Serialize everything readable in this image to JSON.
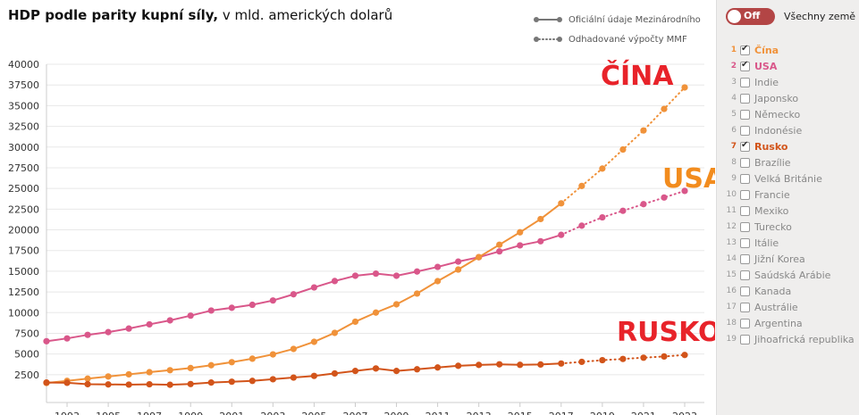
{
  "title": {
    "bold": "HDP podle parity kupní síly,",
    "rest": " v mld. amerických dolarů"
  },
  "legend": {
    "official": "Oficiální údaje Mezinárodního",
    "estimated": "Odhadované výpočty MMF"
  },
  "colors": {
    "china": "#f0923a",
    "usa": "#d9578a",
    "russia": "#d2541a",
    "china_label": "#e8232a",
    "usa_label": "#f28c1e",
    "russia_label": "#e8232a",
    "legend_gray": "#777777"
  },
  "big_labels": {
    "china": "ČÍNA",
    "usa": "USA",
    "russia": "RUSKO"
  },
  "chart_data": {
    "type": "line",
    "x": [
      1992,
      1993,
      1994,
      1995,
      1996,
      1997,
      1998,
      1999,
      2000,
      2001,
      2002,
      2003,
      2004,
      2005,
      2006,
      2007,
      2008,
      2009,
      2010,
      2011,
      2012,
      2013,
      2014,
      2015,
      2016,
      2017,
      2018,
      2019,
      2020,
      2021,
      2022,
      2023
    ],
    "last_official_year": 2017,
    "ylim": [
      0,
      40000
    ],
    "yticks": [
      2500,
      5000,
      7500,
      10000,
      12500,
      15000,
      17500,
      20000,
      22500,
      25000,
      27500,
      30000,
      32500,
      35000,
      37500,
      40000
    ],
    "xticks": [
      1993,
      1995,
      1997,
      1999,
      2001,
      2003,
      2005,
      2007,
      2009,
      2011,
      2013,
      2015,
      2017,
      2019,
      2021,
      2023
    ],
    "series": [
      {
        "key": "usa",
        "name": "USA",
        "values": [
          6540,
          6880,
          7310,
          7640,
          8070,
          8580,
          9060,
          9630,
          10250,
          10580,
          10940,
          11460,
          12210,
          13040,
          13810,
          14450,
          14710,
          14450,
          14960,
          15520,
          16160,
          16690,
          17390,
          18120,
          18620,
          19390,
          20500,
          21500,
          22300,
          23100,
          23900,
          24700
        ]
      },
      {
        "key": "china",
        "name": "Čína",
        "values": [
          1500,
          1750,
          2020,
          2280,
          2540,
          2800,
          3040,
          3300,
          3640,
          4010,
          4430,
          4950,
          5610,
          6470,
          7550,
          8900,
          10000,
          11000,
          12300,
          13800,
          15200,
          16700,
          18200,
          19700,
          21300,
          23200,
          25300,
          27400,
          29700,
          32000,
          34600,
          37200
        ]
      },
      {
        "key": "russia",
        "name": "Rusko",
        "values": [
          1550,
          1520,
          1350,
          1320,
          1300,
          1340,
          1280,
          1370,
          1550,
          1650,
          1750,
          1950,
          2150,
          2350,
          2650,
          2950,
          3250,
          2950,
          3150,
          3370,
          3570,
          3680,
          3750,
          3690,
          3730,
          3850,
          4050,
          4250,
          4400,
          4550,
          4700,
          4880
        ]
      }
    ]
  },
  "panel": {
    "toggle_label": "Off",
    "all_label": "Všechny země",
    "countries": [
      {
        "num": "1",
        "name": "Čína",
        "checked": true,
        "color": "#f0923a"
      },
      {
        "num": "2",
        "name": "USA",
        "checked": true,
        "color": "#d9578a"
      },
      {
        "num": "3",
        "name": "Indie",
        "checked": false
      },
      {
        "num": "4",
        "name": "Japonsko",
        "checked": false
      },
      {
        "num": "5",
        "name": "Německo",
        "checked": false
      },
      {
        "num": "6",
        "name": "Indonésie",
        "checked": false
      },
      {
        "num": "7",
        "name": "Rusko",
        "checked": true,
        "color": "#d2541a"
      },
      {
        "num": "8",
        "name": "Brazílie",
        "checked": false
      },
      {
        "num": "9",
        "name": "Velká Británie",
        "checked": false
      },
      {
        "num": "10",
        "name": "Francie",
        "checked": false
      },
      {
        "num": "11",
        "name": "Mexiko",
        "checked": false
      },
      {
        "num": "12",
        "name": "Turecko",
        "checked": false
      },
      {
        "num": "13",
        "name": "Itálie",
        "checked": false
      },
      {
        "num": "14",
        "name": "Jižní Korea",
        "checked": false
      },
      {
        "num": "15",
        "name": "Saúdská Arábie",
        "checked": false
      },
      {
        "num": "16",
        "name": "Kanada",
        "checked": false
      },
      {
        "num": "17",
        "name": "Austrálie",
        "checked": false
      },
      {
        "num": "18",
        "name": "Argentina",
        "checked": false
      },
      {
        "num": "19",
        "name": "Jihoafrická republika",
        "checked": false
      }
    ]
  }
}
